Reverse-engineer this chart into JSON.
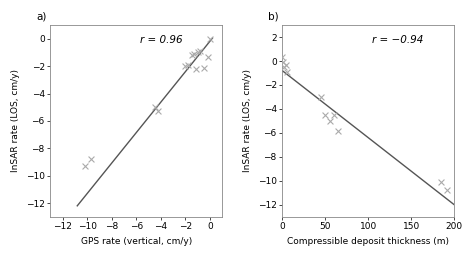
{
  "panel_a": {
    "label": "a)",
    "scatter_x": [
      -10.2,
      -9.7,
      -4.5,
      -4.2,
      -2.0,
      -1.8,
      -1.5,
      -1.3,
      -1.1,
      -1.0,
      -0.8,
      -0.5,
      -0.2,
      0.0
    ],
    "scatter_y": [
      -9.3,
      -8.8,
      -5.0,
      -5.3,
      -2.0,
      -1.9,
      -1.2,
      -1.1,
      -2.2,
      -1.0,
      -0.9,
      -2.1,
      -1.3,
      0.0
    ],
    "line_x": [
      -10.8,
      0.2
    ],
    "line_y": [
      -12.2,
      0.05
    ],
    "r_text": "r = 0.96",
    "xlabel": "GPS rate (vertical, cm/y)",
    "ylabel": "InSAR rate (LOS, cm/y)",
    "xlim": [
      -13,
      1
    ],
    "ylim": [
      -13,
      1
    ],
    "xticks": [
      -12,
      -10,
      -8,
      -6,
      -4,
      -2,
      0
    ],
    "yticks": [
      -12,
      -10,
      -8,
      -6,
      -4,
      -2,
      0
    ]
  },
  "panel_b": {
    "label": "b)",
    "scatter_x": [
      0,
      1,
      2,
      4,
      5,
      45,
      50,
      55,
      60,
      65,
      185,
      192
    ],
    "scatter_y": [
      0.3,
      -0.1,
      -0.5,
      -0.3,
      -0.9,
      -3.0,
      -4.5,
      -5.0,
      -4.5,
      -5.8,
      -10.1,
      -10.8
    ],
    "line_x": [
      0,
      200
    ],
    "line_y": [
      -0.8,
      -12.0
    ],
    "r_text": "r = −0.94",
    "xlabel": "Compressible deposit thickness (m)",
    "ylabel": "InSAR rate (LOS, cm/y)",
    "xlim": [
      0,
      200
    ],
    "ylim": [
      -13,
      3
    ],
    "xticks": [
      0,
      50,
      100,
      150,
      200
    ],
    "yticks": [
      -12,
      -10,
      -8,
      -6,
      -4,
      -2,
      0,
      2
    ]
  },
  "marker_color": "#aaaaaa",
  "line_color": "#555555",
  "bg_color": "#ffffff",
  "marker_size": 18,
  "marker": "x",
  "font_size": 6.5,
  "label_font_size": 6.5,
  "r_text_fontsize": 7.5
}
